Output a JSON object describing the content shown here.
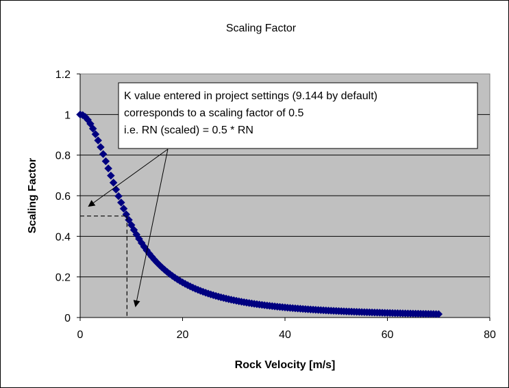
{
  "chart_data": {
    "type": "scatter",
    "title": "Scaling Factor",
    "xlabel": "Rock Velocity [m/s]",
    "ylabel": "Scaling Factor",
    "xlim": [
      0,
      80
    ],
    "ylim": [
      0,
      1.2
    ],
    "x_ticks": [
      "0",
      "20",
      "40",
      "60",
      "80"
    ],
    "y_ticks": [
      "0",
      "0.2",
      "0.4",
      "0.6",
      "0.8",
      "1",
      "1.2"
    ],
    "grid": "horizontal",
    "plot_background": "#c0c0c0",
    "series": [
      {
        "marker": "diamond",
        "color": "#000080",
        "formula": "1 / (1 + (x / 9.144)^2)",
        "x_range": [
          0,
          70
        ],
        "x_step": 0.5
      }
    ],
    "reference_point": {
      "x": 9.144,
      "y": 0.5
    },
    "annotation": {
      "lines": [
        "K value entered in project settings (9.144 by default)",
        "corresponds to a scaling factor of 0.5",
        "i.e. RN (scaled) = 0.5 * RN"
      ]
    }
  }
}
